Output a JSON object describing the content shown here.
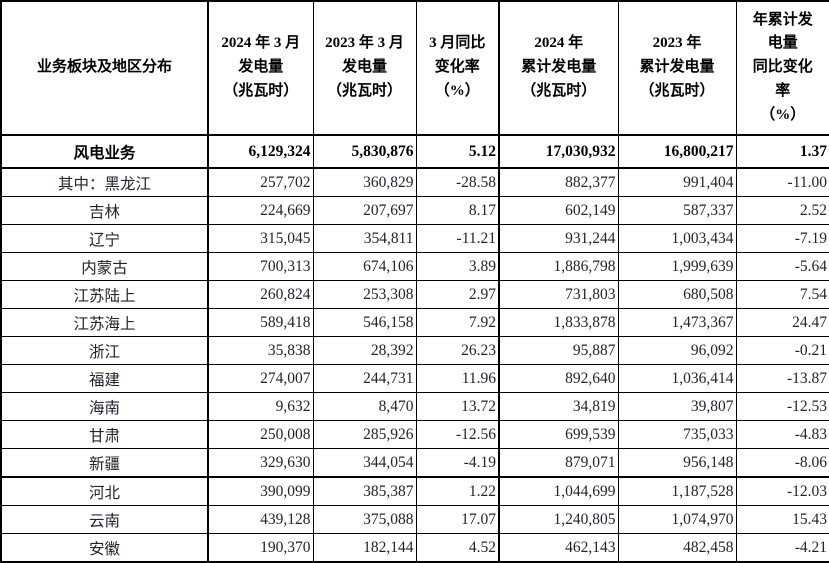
{
  "page": {
    "background": "#ffffff"
  },
  "table": {
    "name": "wind-power-generation-by-region",
    "unit_note": "兆瓦时",
    "colors": {
      "border": "#000000",
      "header_text": "#000000",
      "body_text": "#20242e"
    },
    "headers": [
      "业务板块及地区分布",
      "2024 年 3 月\n发电量\n（兆瓦时）",
      "2023 年 3 月\n发电量\n（兆瓦时）",
      "3 月同比\n变化率\n（%）",
      "2024 年\n累计发电量\n（兆瓦时）",
      "2023 年\n累计发电量\n（兆瓦时）",
      "年累计发\n电量\n同比变化\n率\n（%）"
    ],
    "summary": {
      "label": "风电业务",
      "values": [
        "6,129,324",
        "5,830,876",
        "5.12",
        "17,030,932",
        "16,800,217",
        "1.37"
      ]
    },
    "rows": [
      {
        "label": "其中：黑龙江",
        "values": [
          "257,702",
          "360,829",
          "-28.58",
          "882,377",
          "991,404",
          "-11.00"
        ]
      },
      {
        "label": "吉林",
        "values": [
          "224,669",
          "207,697",
          "8.17",
          "602,149",
          "587,337",
          "2.52"
        ]
      },
      {
        "label": "辽宁",
        "values": [
          "315,045",
          "354,811",
          "-11.21",
          "931,244",
          "1,003,434",
          "-7.19"
        ]
      },
      {
        "label": "内蒙古",
        "values": [
          "700,313",
          "674,106",
          "3.89",
          "1,886,798",
          "1,999,639",
          "-5.64"
        ]
      },
      {
        "label": "江苏陆上",
        "values": [
          "260,824",
          "253,308",
          "2.97",
          "731,803",
          "680,508",
          "7.54"
        ]
      },
      {
        "label": "江苏海上",
        "values": [
          "589,418",
          "546,158",
          "7.92",
          "1,833,878",
          "1,473,367",
          "24.47"
        ]
      },
      {
        "label": "浙江",
        "values": [
          "35,838",
          "28,392",
          "26.23",
          "95,887",
          "96,092",
          "-0.21"
        ]
      },
      {
        "label": "福建",
        "values": [
          "274,007",
          "244,731",
          "11.96",
          "892,640",
          "1,036,414",
          "-13.87"
        ]
      },
      {
        "label": "海南",
        "values": [
          "9,632",
          "8,470",
          "13.72",
          "34,819",
          "39,807",
          "-12.53"
        ]
      },
      {
        "label": "甘肃",
        "values": [
          "250,008",
          "285,926",
          "-12.56",
          "699,539",
          "735,033",
          "-4.83"
        ]
      },
      {
        "label": "新疆",
        "values": [
          "329,630",
          "344,054",
          "-4.19",
          "879,071",
          "956,148",
          "-8.06"
        ]
      },
      {
        "label": "河北",
        "values": [
          "390,099",
          "385,387",
          "1.22",
          "1,044,699",
          "1,187,528",
          "-12.03"
        ],
        "divider_above": true
      },
      {
        "label": "云南",
        "values": [
          "439,128",
          "375,088",
          "17.07",
          "1,240,805",
          "1,074,970",
          "15.43"
        ]
      },
      {
        "label": "安徽",
        "values": [
          "190,370",
          "182,144",
          "4.52",
          "462,143",
          "482,458",
          "-4.21"
        ]
      }
    ]
  }
}
